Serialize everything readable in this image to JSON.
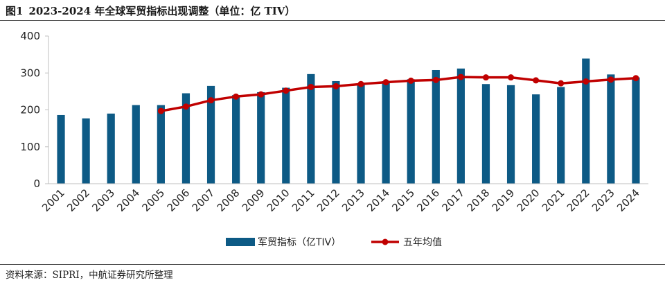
{
  "figure": {
    "number": "图1",
    "title": "2023-2024 年全球军贸指标出现调整（单位：亿 TIV）",
    "source": "资料来源：SIPRI，中航证券研究所整理"
  },
  "colors": {
    "bar": "#0d5a85",
    "line": "#c00000",
    "axis": "#bfbfbf",
    "text": "#222222"
  },
  "chart_data": {
    "type": "bar",
    "categories": [
      "2001",
      "2002",
      "2003",
      "2004",
      "2005",
      "2006",
      "2007",
      "2008",
      "2009",
      "2010",
      "2011",
      "2012",
      "2013",
      "2014",
      "2015",
      "2016",
      "2017",
      "2018",
      "2019",
      "2020",
      "2021",
      "2022",
      "2023",
      "2024"
    ],
    "series": [
      {
        "name": "军贸指标（亿TIV）",
        "type": "bar",
        "values": [
          186,
          177,
          190,
          213,
          213,
          245,
          265,
          240,
          248,
          260,
          297,
          278,
          270,
          278,
          283,
          308,
          312,
          270,
          267,
          242,
          262,
          339,
          296,
          288
        ]
      },
      {
        "name": "五年均值",
        "type": "line",
        "marker": "circle",
        "values": [
          null,
          null,
          null,
          null,
          197,
          209,
          226,
          236,
          242,
          252,
          262,
          264,
          270,
          275,
          279,
          281,
          289,
          288,
          288,
          280,
          272,
          277,
          282,
          286
        ]
      }
    ],
    "ylim": [
      0,
      400
    ],
    "yticks": [
      0,
      100,
      200,
      300,
      400
    ],
    "xtick_rotation": -45,
    "grid": false,
    "legend": "bottom-center",
    "title": "",
    "xlabel": "",
    "ylabel": ""
  }
}
